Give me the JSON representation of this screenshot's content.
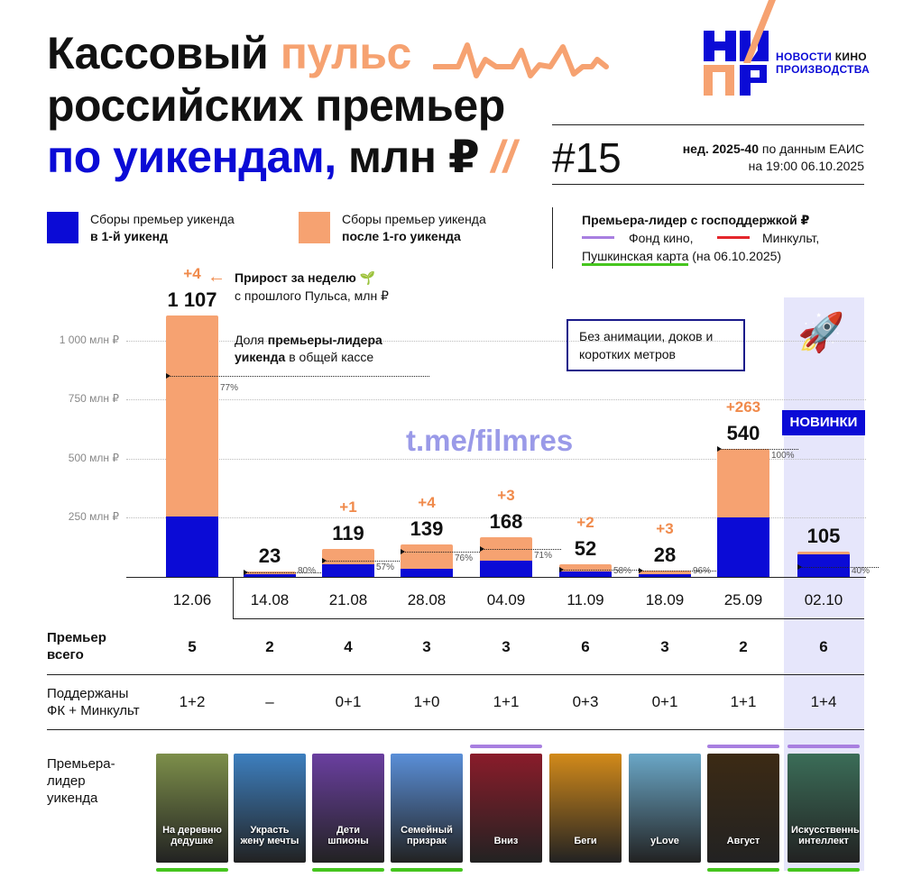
{
  "title": {
    "line1_a": "Кассовый",
    "line1_b": "пульс",
    "line2": "российских премьер",
    "line3_a": "по уикендам,",
    "line3_b": "млн ₽",
    "slashes": "//",
    "issue": "#15",
    "week_bold": "нед. 2025-40",
    "week_rest": " по данным ЕАИС",
    "as_of": "на 19:00 06.10.2025"
  },
  "logo": {
    "mark": "НКПР",
    "line1_a": "НОВОСТИ ",
    "line1_b": "КИНО",
    "line2": "ПРОИЗВОДСТВА"
  },
  "legend": {
    "first_weekend_a": "Сборы премьер уикенда",
    "first_weekend_b": "в 1-й уикенд",
    "after_first_a": "Сборы премьер уикенда",
    "after_first_b": "после 1-го уикенда",
    "leader_title": "Премьера-лидер с господдержкой ₽",
    "fk": "Фонд кино,",
    "mk": "Минкульт,",
    "pk": "Пушкинская карта",
    "pk_date": " (на 06.10.2025)"
  },
  "notes": {
    "growth_a": "Прирост за неделю",
    "growth_b": "с прошлого Пульса, млн ₽",
    "share_a": "Доля ",
    "share_b": "премьеры-лидера",
    "share_c": "уикенда",
    "share_d": " в общей кассе",
    "box": "Без анимации, доков и коротких метров",
    "watermark": "t.me/filmres",
    "new_badge": "НОВИНКИ"
  },
  "colors": {
    "first": "#0b0bd6",
    "after": "#f6a271",
    "fk": "#a87fe0",
    "mk": "#e4262b",
    "pk": "#46c51f",
    "highlight": "#e6e6fb"
  },
  "row_labels": {
    "premieres_a": "Премьер",
    "premieres_b": "всего",
    "supported_a": "Поддержаны",
    "supported_b": "ФК + Минкульт",
    "leader_a": "Премьера-",
    "leader_b": "лидер",
    "leader_c": "уикенда"
  },
  "chart_data": {
    "type": "bar",
    "stacked": true,
    "y_unit": "млн ₽",
    "ylim": [
      0,
      1150
    ],
    "yticks": [
      {
        "value": 250,
        "label": "250 млн ₽"
      },
      {
        "value": 500,
        "label": "500 млн ₽"
      },
      {
        "value": 750,
        "label": "750 млн ₽"
      },
      {
        "value": 1000,
        "label": "1 000 млн ₽"
      }
    ],
    "categories": [
      "12.06",
      "14.08",
      "21.08",
      "28.08",
      "04.09",
      "11.09",
      "18.09",
      "25.09",
      "02.10"
    ],
    "series": [
      {
        "name": "Сборы премьер уикенда в 1-й уикенд",
        "values": [
          255,
          11,
          52,
          33,
          68,
          24,
          12,
          252,
          95
        ]
      },
      {
        "name": "Сборы премьер уикенда после 1-го уикенда",
        "values": [
          852,
          12,
          67,
          106,
          100,
          28,
          16,
          288,
          10
        ]
      }
    ],
    "totals": [
      1107,
      23,
      119,
      139,
      168,
      52,
      28,
      540,
      105
    ],
    "total_labels": [
      "1 107",
      "23",
      "119",
      "139",
      "168",
      "52",
      "28",
      "540",
      "105"
    ],
    "increments": [
      "+4",
      "",
      "+1",
      "+4",
      "+3",
      "+2",
      "+3",
      "+263",
      ""
    ],
    "leader_share_pct": [
      77,
      80,
      57,
      76,
      71,
      58,
      96,
      100,
      40
    ],
    "leader_share_labels": [
      "77%",
      "80%",
      "57%",
      "76%",
      "71%",
      "58%",
      "96%",
      "100%",
      "40%"
    ],
    "premieres_total": [
      "5",
      "2",
      "4",
      "3",
      "3",
      "6",
      "3",
      "2",
      "6"
    ],
    "supported_fk_mk": [
      "1+2",
      "–",
      "0+1",
      "1+0",
      "1+1",
      "0+3",
      "0+1",
      "1+1",
      "1+4"
    ],
    "leaders": [
      {
        "title": "На деревню дедушке",
        "support_top": "",
        "support_bottom": "pk"
      },
      {
        "title": "Украсть жену мечты",
        "support_top": "",
        "support_bottom": ""
      },
      {
        "title": "Дети шпионы",
        "support_top": "",
        "support_bottom": "pk"
      },
      {
        "title": "Семейный призрак",
        "support_top": "",
        "support_bottom": "pk"
      },
      {
        "title": "Вниз",
        "support_top": "fk",
        "support_bottom": ""
      },
      {
        "title": "Беги",
        "support_top": "",
        "support_bottom": ""
      },
      {
        "title": "yLove",
        "support_top": "",
        "support_bottom": ""
      },
      {
        "title": "Август",
        "support_top": "fk",
        "support_bottom": "pk"
      },
      {
        "title": "Искусственный интеллект",
        "support_top": "fk",
        "support_bottom": "pk"
      }
    ]
  }
}
